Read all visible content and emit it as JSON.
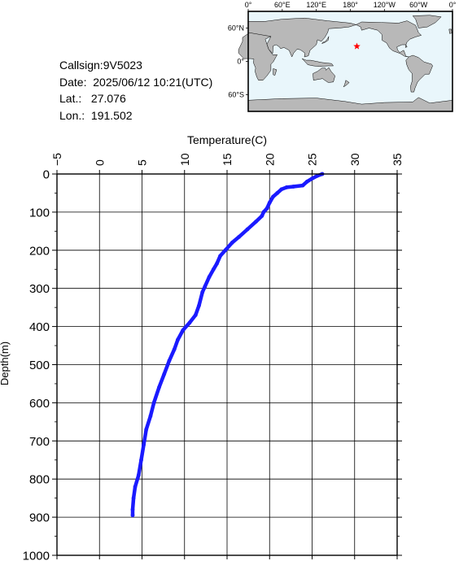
{
  "info": {
    "callsign": "Callsign:9V5023",
    "date": "Date:  2025/06/12 10:21(UTC)",
    "lat": "Lat.:   27.076",
    "lon": "Lon.:  191.502"
  },
  "map": {
    "lon_labels": [
      "0°",
      "60°E",
      "120°E",
      "180°",
      "120°W",
      "60°W",
      "0°"
    ],
    "lat_labels": [
      "60°N",
      "0°",
      "60°S"
    ],
    "ocean_color": "#e9f6fb",
    "land_color": "#b8b8b8",
    "marker": {
      "lat": 27.076,
      "lon": 191.502,
      "symbol": "star",
      "color": "#ff0000"
    }
  },
  "chart_data": {
    "type": "line",
    "xlabel": "Temperature(C)",
    "ylabel": "Depth(m)",
    "xlim": [
      -5,
      35
    ],
    "ylim": [
      1000,
      0
    ],
    "x_ticks": [
      -5,
      0,
      5,
      10,
      15,
      20,
      25,
      30,
      35
    ],
    "y_ticks": [
      0,
      100,
      200,
      300,
      400,
      500,
      600,
      700,
      800,
      900,
      1000
    ],
    "grid": true,
    "series": [
      {
        "color": "#1a1aff",
        "points": [
          [
            26.2,
            0
          ],
          [
            25.6,
            5
          ],
          [
            25.0,
            12
          ],
          [
            24.4,
            20
          ],
          [
            23.9,
            30
          ],
          [
            22.8,
            33
          ],
          [
            22.0,
            35
          ],
          [
            21.4,
            40
          ],
          [
            20.9,
            50
          ],
          [
            20.4,
            60
          ],
          [
            20.0,
            75
          ],
          [
            19.7,
            90
          ],
          [
            19.3,
            100
          ],
          [
            19.1,
            110
          ],
          [
            18.4,
            125
          ],
          [
            17.4,
            145
          ],
          [
            16.4,
            165
          ],
          [
            15.6,
            180
          ],
          [
            14.8,
            200
          ],
          [
            14.2,
            215
          ],
          [
            13.8,
            235
          ],
          [
            13.4,
            250
          ],
          [
            12.9,
            270
          ],
          [
            12.4,
            295
          ],
          [
            12.1,
            310
          ],
          [
            11.7,
            345
          ],
          [
            11.3,
            370
          ],
          [
            10.6,
            390
          ],
          [
            9.8,
            410
          ],
          [
            9.2,
            435
          ],
          [
            8.8,
            460
          ],
          [
            8.2,
            490
          ],
          [
            7.6,
            525
          ],
          [
            7.0,
            560
          ],
          [
            6.4,
            600
          ],
          [
            6.0,
            635
          ],
          [
            5.5,
            670
          ],
          [
            5.2,
            710
          ],
          [
            4.9,
            750
          ],
          [
            4.6,
            790
          ],
          [
            4.2,
            820
          ],
          [
            4.0,
            850
          ],
          [
            3.9,
            880
          ],
          [
            3.9,
            895
          ]
        ]
      }
    ]
  }
}
